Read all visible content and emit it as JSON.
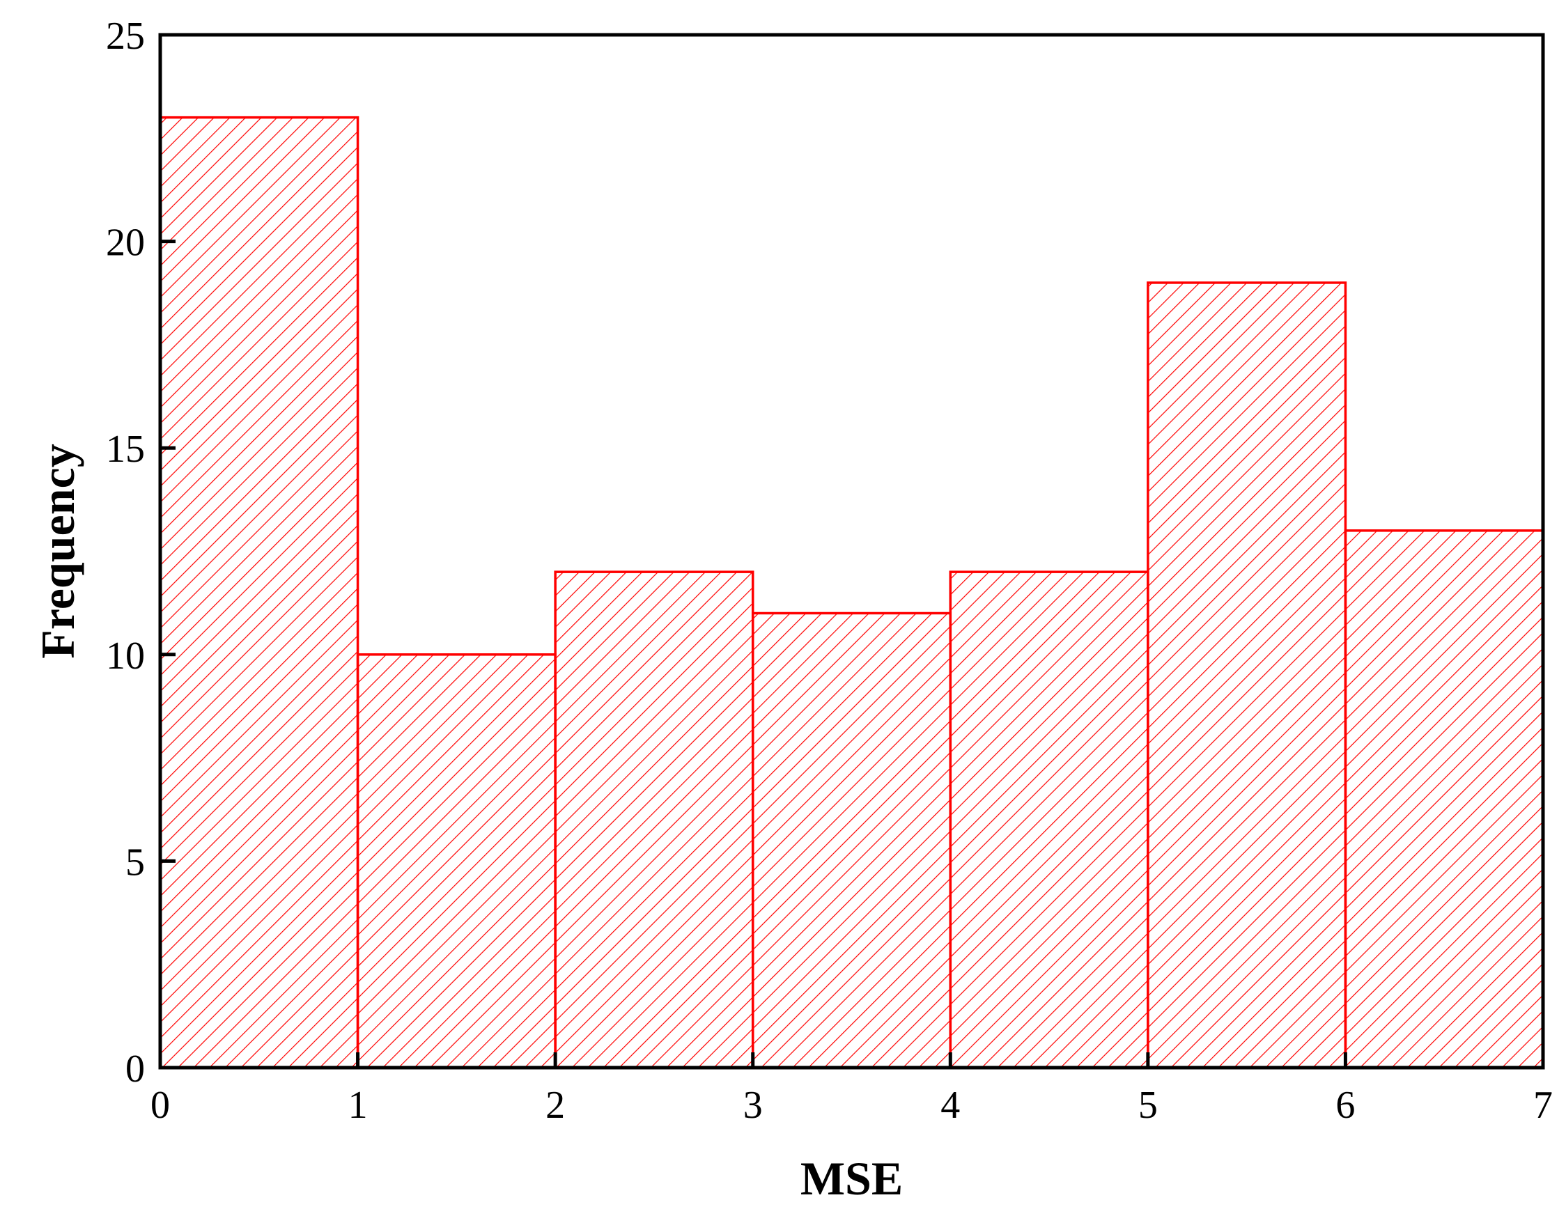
{
  "chart_data": {
    "type": "bar",
    "subtype": "histogram",
    "bins": [
      {
        "start": 0,
        "end": 1,
        "value": 23
      },
      {
        "start": 1,
        "end": 2,
        "value": 10
      },
      {
        "start": 2,
        "end": 3,
        "value": 12
      },
      {
        "start": 3,
        "end": 4,
        "value": 11
      },
      {
        "start": 4,
        "end": 5,
        "value": 12
      },
      {
        "start": 5,
        "end": 6,
        "value": 19
      },
      {
        "start": 6,
        "end": 7,
        "value": 13
      }
    ],
    "xlabel": "MSE",
    "ylabel": "Frequency",
    "xlim": [
      0,
      7
    ],
    "ylim": [
      0,
      25
    ],
    "xticks": [
      "0",
      "1",
      "2",
      "3",
      "4",
      "5",
      "6",
      "7"
    ],
    "yticks": [
      "0",
      "5",
      "10",
      "15",
      "20",
      "25"
    ],
    "grid": false,
    "legend": "none",
    "bar_color": "#ff0000",
    "bar_fill": "diagonal-hatch"
  }
}
